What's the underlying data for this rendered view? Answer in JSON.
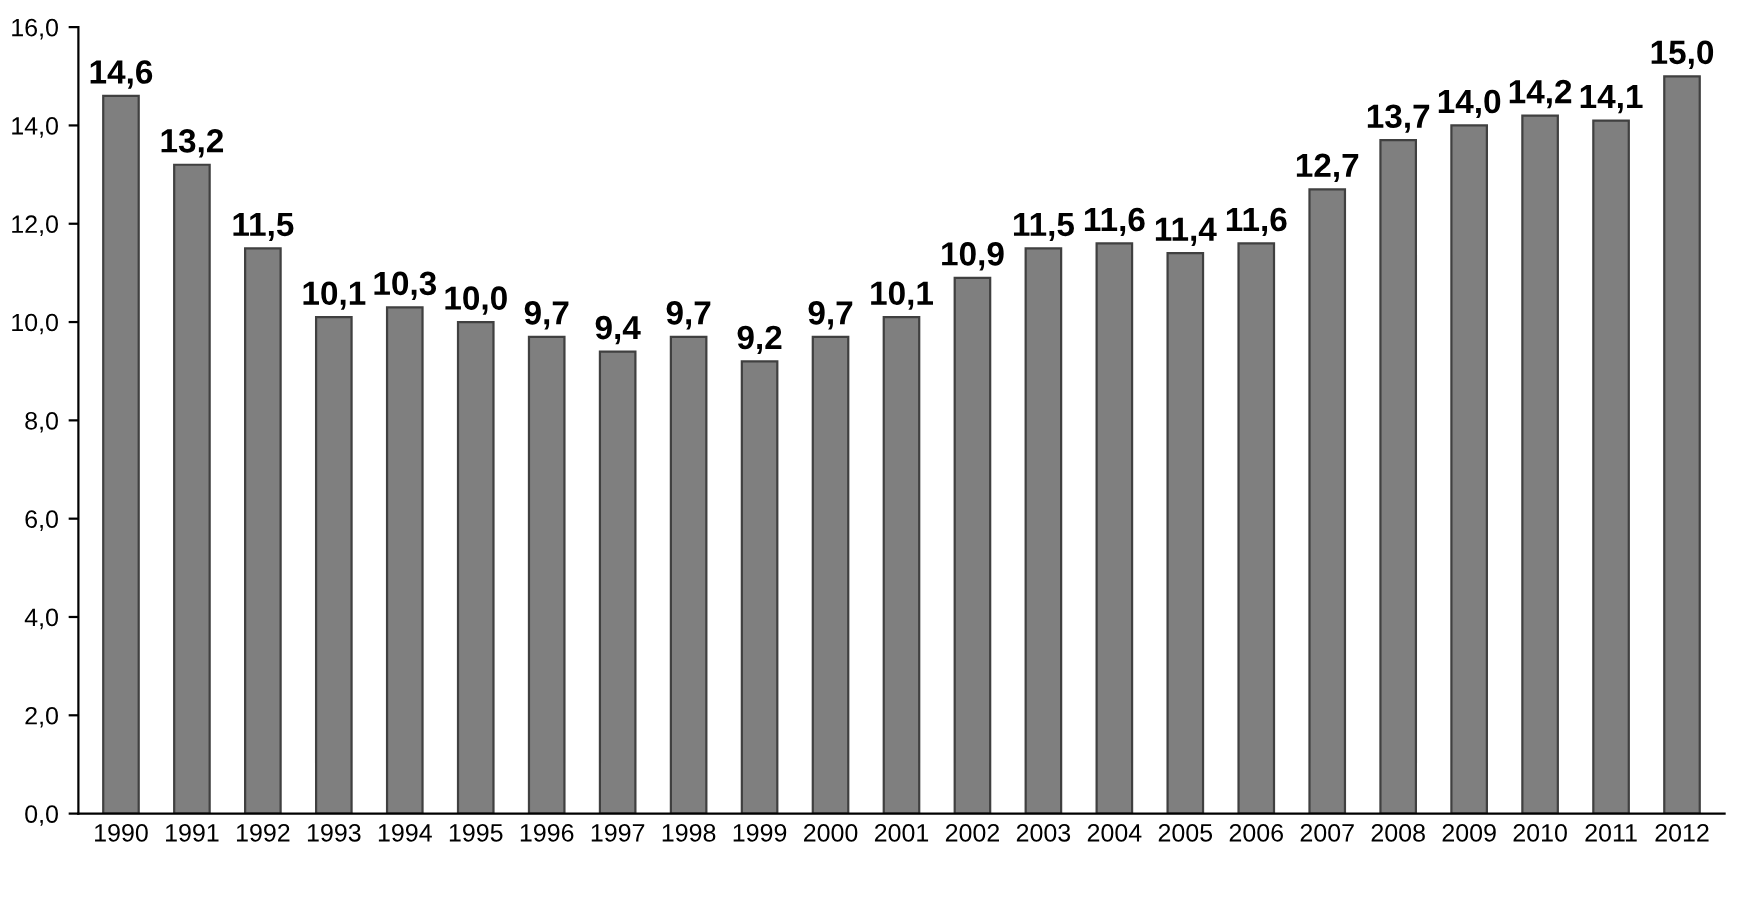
{
  "chart_data": {
    "type": "bar",
    "categories": [
      "1990",
      "1991",
      "1992",
      "1993",
      "1994",
      "1995",
      "1996",
      "1997",
      "1998",
      "1999",
      "2000",
      "2001",
      "2002",
      "2003",
      "2004",
      "2005",
      "2006",
      "2007",
      "2008",
      "2009",
      "2010",
      "2011",
      "2012"
    ],
    "values": [
      14.6,
      13.2,
      11.5,
      10.1,
      10.3,
      10.0,
      9.7,
      9.4,
      9.7,
      9.2,
      9.7,
      10.1,
      10.9,
      11.5,
      11.6,
      11.4,
      11.6,
      12.7,
      13.7,
      14.0,
      14.2,
      14.1,
      15.0
    ],
    "value_labels": [
      "14,6",
      "13,2",
      "11,5",
      "10,1",
      "10,3",
      "10,0",
      "9,7",
      "9,4",
      "9,7",
      "9,2",
      "9,7",
      "10,1",
      "10,9",
      "11,5",
      "11,6",
      "11,4",
      "11,6",
      "12,7",
      "13,7",
      "14,0",
      "14,2",
      "14,1",
      "15,0"
    ],
    "color": "#7f7f7f",
    "ylim": [
      0,
      16
    ],
    "yticks": [
      {
        "value": 0,
        "label": "0,0"
      },
      {
        "value": 2,
        "label": "2,0"
      },
      {
        "value": 4,
        "label": "4,0"
      },
      {
        "value": 6,
        "label": "6,0"
      },
      {
        "value": 8,
        "label": "8,0"
      },
      {
        "value": 10,
        "label": "10,0"
      },
      {
        "value": 12,
        "label": "12,0"
      },
      {
        "value": 14,
        "label": "14,0"
      },
      {
        "value": 16,
        "label": "16,0"
      }
    ],
    "grid": false,
    "legend": false
  }
}
